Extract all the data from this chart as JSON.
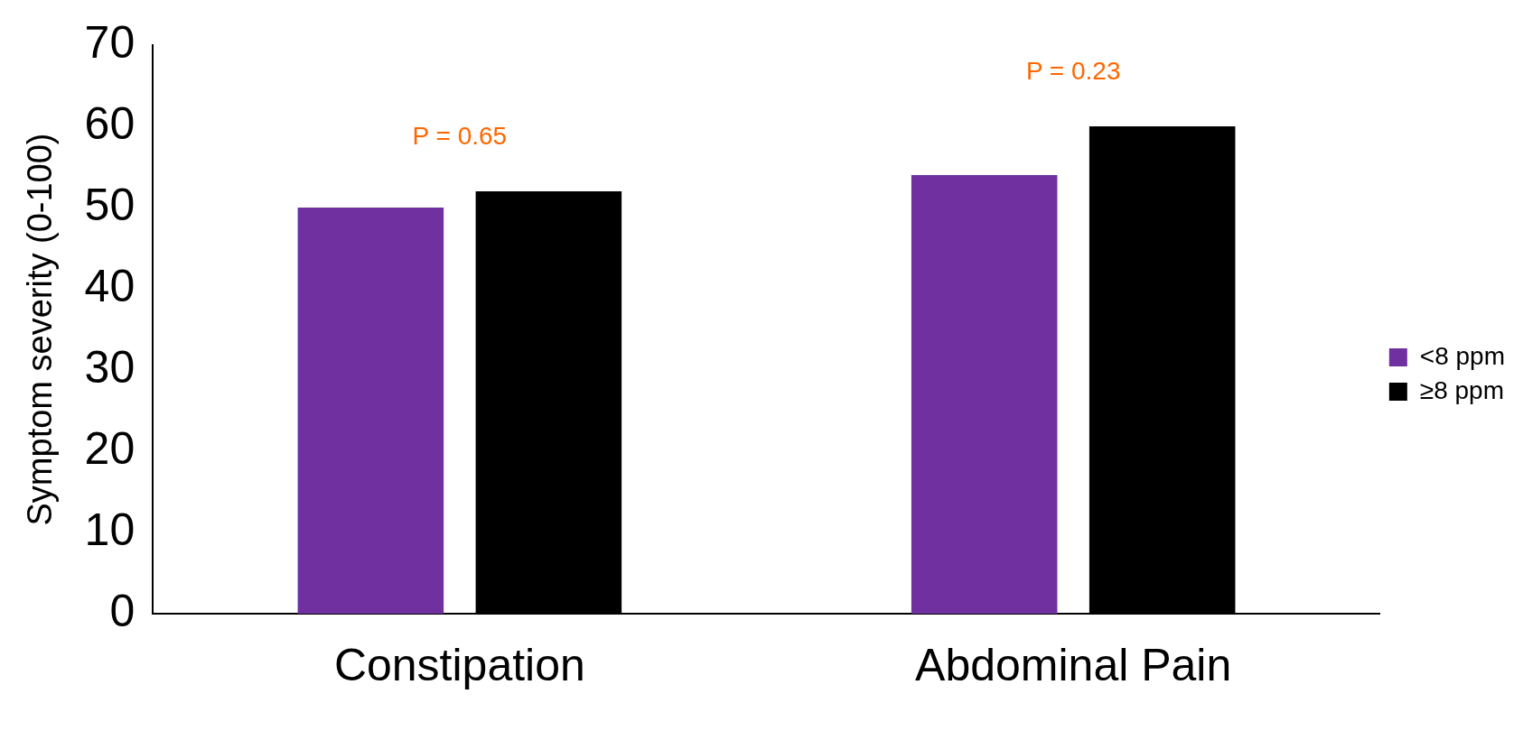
{
  "chart_data": {
    "type": "bar",
    "ylabel": "Symptom severity (0-100)",
    "categories": [
      "Constipation",
      "Abdominal Pain"
    ],
    "series": [
      {
        "name": "<8 ppm",
        "color": "#7030a0",
        "values": [
          50,
          54
        ]
      },
      {
        "name": "≥8 ppm",
        "color": "#000000",
        "values": [
          52,
          60
        ]
      }
    ],
    "ylim": [
      0,
      70
    ],
    "yticks": [
      0,
      10,
      20,
      30,
      40,
      50,
      60,
      70
    ],
    "grid": false,
    "legend": "right",
    "annotations": [
      "P = 0.65",
      "P = 0.23"
    ]
  }
}
